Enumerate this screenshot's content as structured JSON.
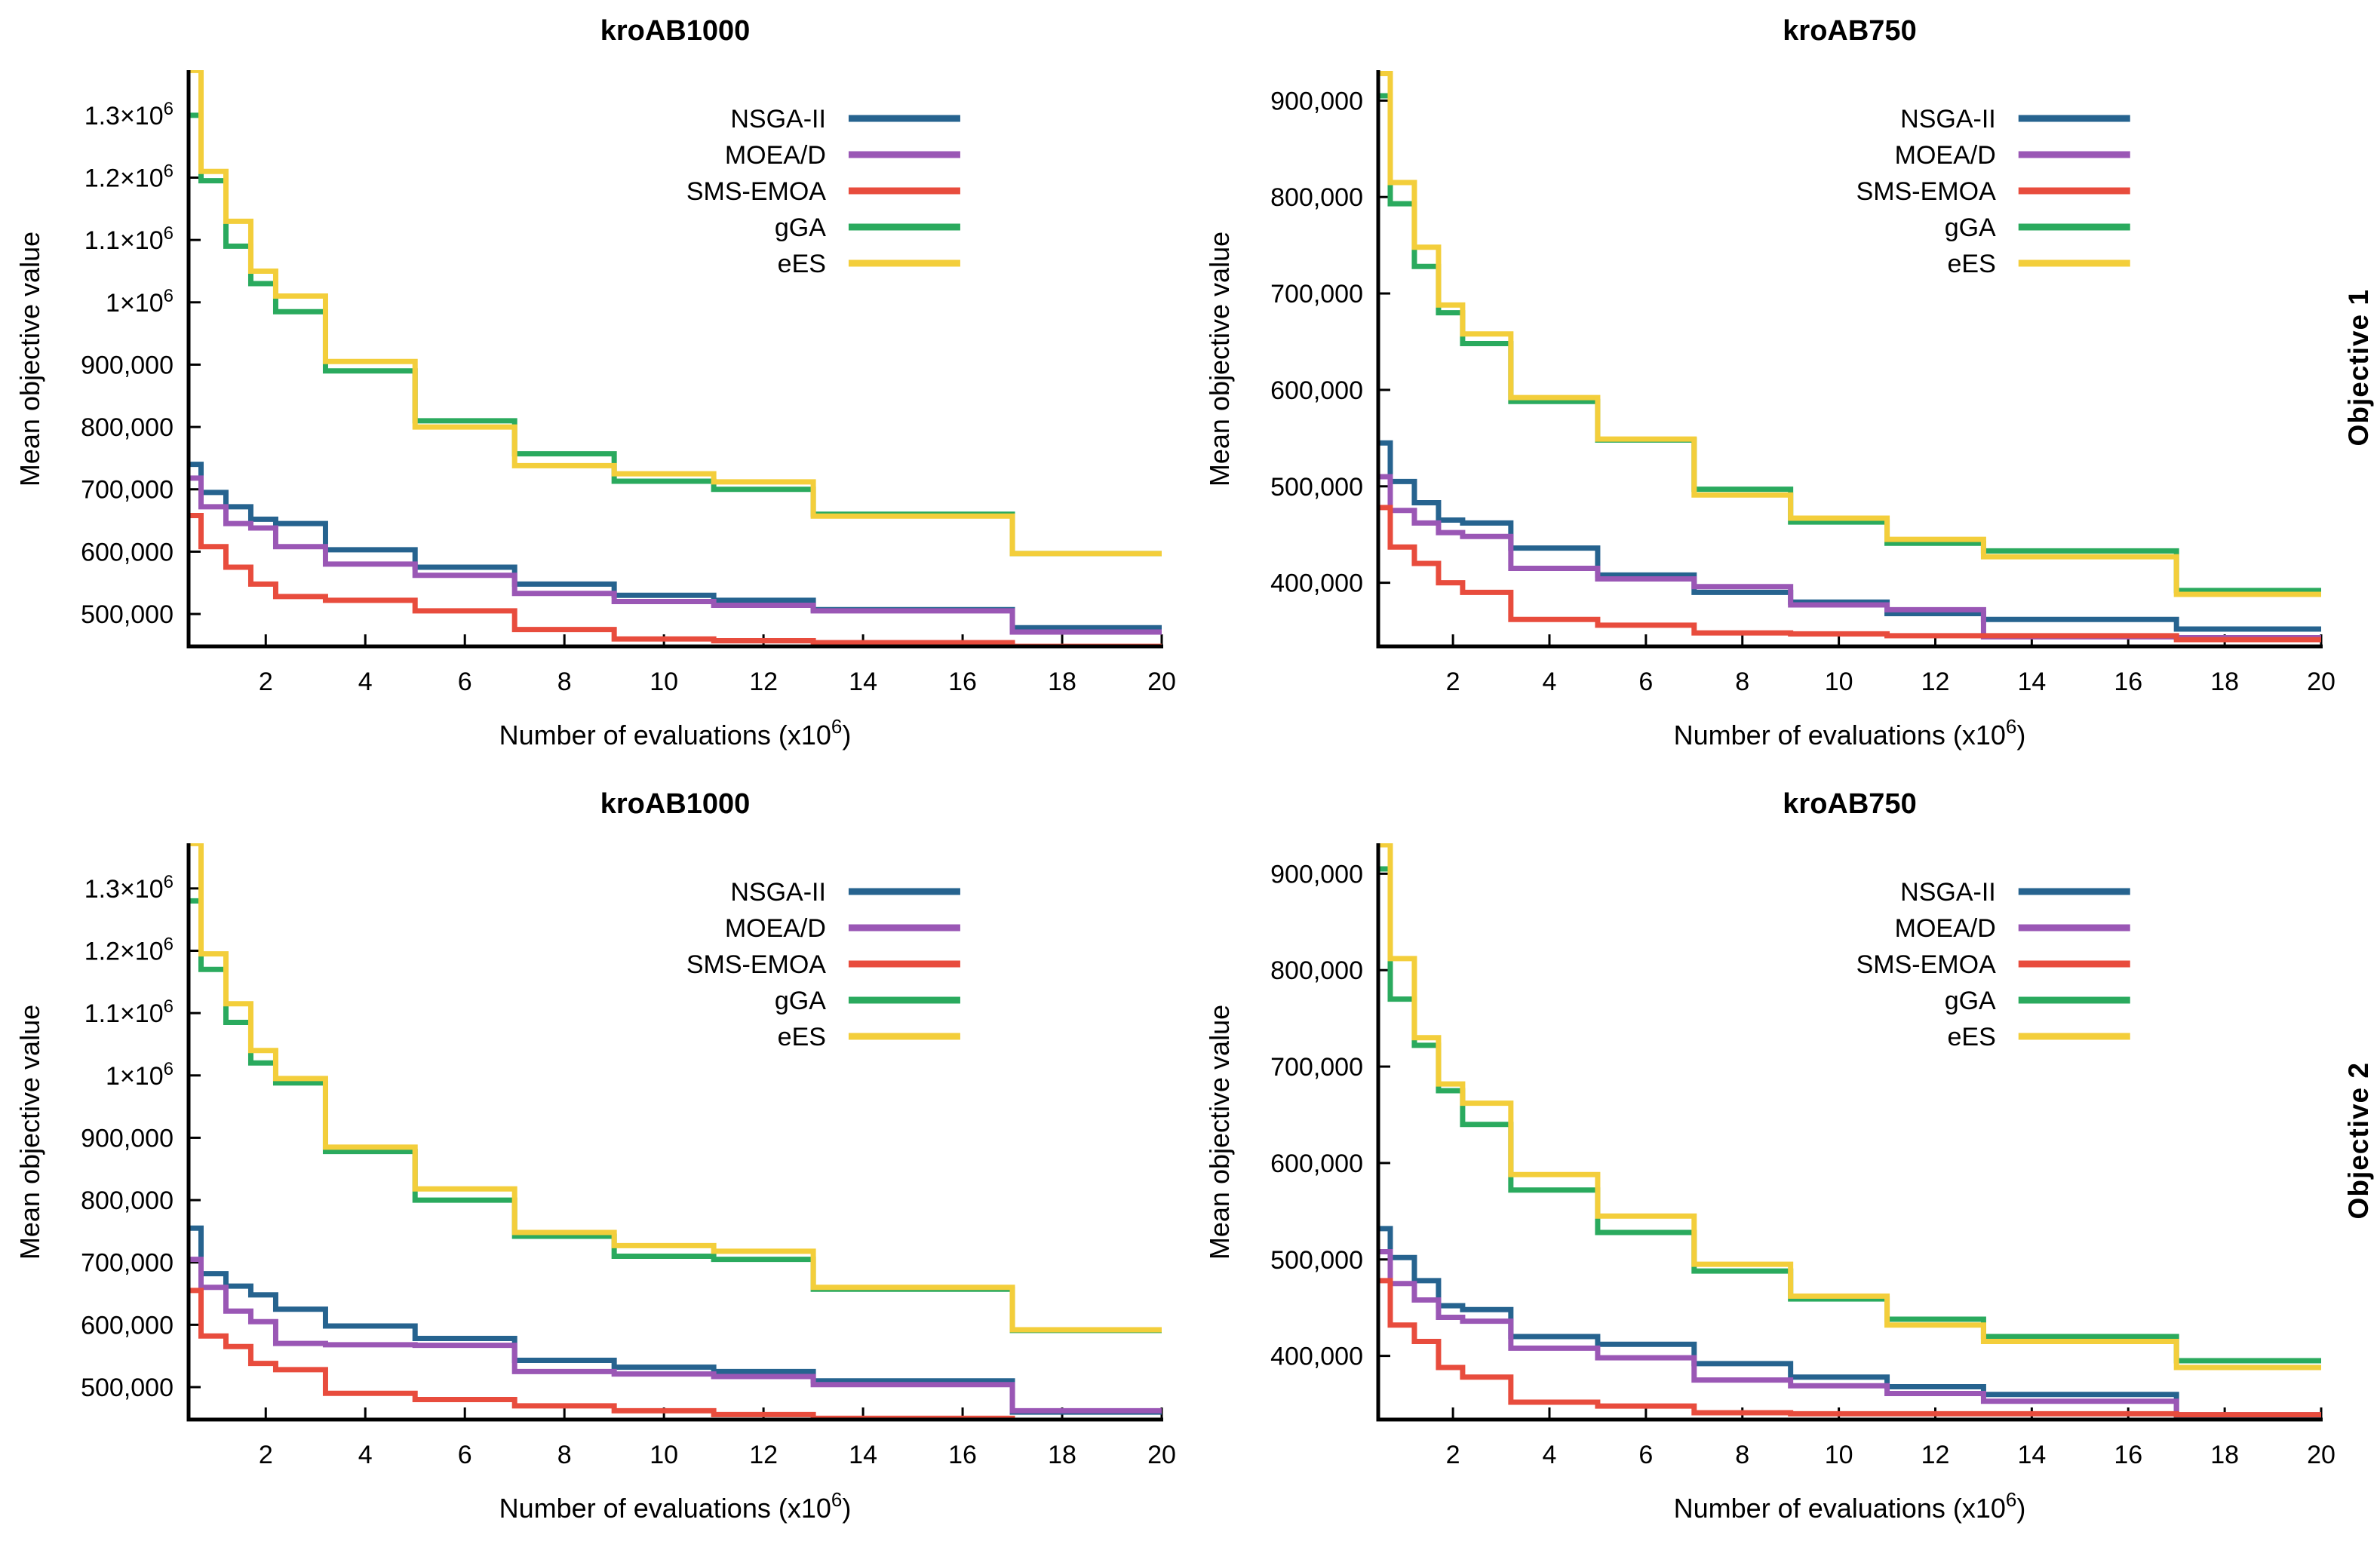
{
  "row_labels": [
    {
      "label": "Objective 1"
    },
    {
      "label": "Objective 2"
    }
  ],
  "legend_entries": [
    "NSGA-II",
    "MOEA/D",
    "SMS-EMOA",
    "gGA",
    "eES"
  ],
  "colors": {
    "nsga2": "#26638f",
    "moead": "#9a57b5",
    "smsemoa": "#e84c3d",
    "gga": "#2aaa5e",
    "ees": "#f3ce3b",
    "axis": "#000000"
  },
  "chart_data": [
    {
      "type": "line",
      "step": true,
      "title": "kroAB1000",
      "xlabel": "Number of evaluations (x10^6)",
      "ylabel": "Mean objective value",
      "legend_position": "upper-right-inside",
      "grid": false,
      "xlim": [
        0.45,
        20
      ],
      "ylim": [
        448000,
        1370000
      ],
      "xticks": [
        2,
        4,
        6,
        8,
        10,
        12,
        14,
        16,
        18,
        20
      ],
      "yticks": [
        {
          "v": 500000,
          "label": "500,000"
        },
        {
          "v": 600000,
          "label": "600,000"
        },
        {
          "v": 700000,
          "label": "700,000"
        },
        {
          "v": 800000,
          "label": "800,000"
        },
        {
          "v": 900000,
          "label": "900,000"
        },
        {
          "v": 1000000,
          "label": "1×10^6"
        },
        {
          "v": 1100000,
          "label": "1.1×10^6"
        },
        {
          "v": 1200000,
          "label": "1.2×10^6"
        },
        {
          "v": 1300000,
          "label": "1.3×10^6"
        }
      ],
      "x_breakpoints": [
        0.45,
        0.7,
        1.2,
        1.7,
        2.2,
        3.2,
        5,
        7,
        9,
        11,
        13,
        17,
        20
      ],
      "series": [
        {
          "name": "NSGA-II",
          "color": "#26638f",
          "values": [
            740000,
            695000,
            672000,
            652000,
            645000,
            603000,
            575000,
            548000,
            530000,
            522000,
            507000,
            478000
          ]
        },
        {
          "name": "MOEA/D",
          "color": "#9a57b5",
          "values": [
            718000,
            672000,
            645000,
            638000,
            608000,
            580000,
            562000,
            533000,
            520000,
            514000,
            505000,
            471000
          ]
        },
        {
          "name": "SMS-EMOA",
          "color": "#e84c3d",
          "values": [
            658000,
            608000,
            575000,
            548000,
            528000,
            522000,
            505000,
            475000,
            460000,
            457000,
            454000,
            448000
          ]
        },
        {
          "name": "gGA",
          "color": "#2aaa5e",
          "values": [
            1300000,
            1195000,
            1090000,
            1030000,
            985000,
            890000,
            810000,
            757000,
            713000,
            700000,
            660000,
            597000
          ]
        },
        {
          "name": "eES",
          "color": "#f3ce3b",
          "values": [
            1372000,
            1210000,
            1130000,
            1050000,
            1010000,
            905000,
            800000,
            738000,
            725000,
            712000,
            657000,
            597000
          ]
        }
      ]
    },
    {
      "type": "line",
      "step": true,
      "title": "kroAB750",
      "xlabel": "Number of evaluations (x10^6)",
      "ylabel": "Mean objective value",
      "legend_position": "upper-right-inside",
      "grid": false,
      "xlim": [
        0.45,
        20
      ],
      "ylim": [
        334000,
        930000
      ],
      "xticks": [
        2,
        4,
        6,
        8,
        10,
        12,
        14,
        16,
        18,
        20
      ],
      "yticks": [
        {
          "v": 400000,
          "label": "400,000"
        },
        {
          "v": 500000,
          "label": "500,000"
        },
        {
          "v": 600000,
          "label": "600,000"
        },
        {
          "v": 700000,
          "label": "700,000"
        },
        {
          "v": 800000,
          "label": "800,000"
        },
        {
          "v": 900000,
          "label": "900,000"
        }
      ],
      "x_breakpoints": [
        0.45,
        0.7,
        1.2,
        1.7,
        2.2,
        3.2,
        5,
        7,
        9,
        11,
        13,
        17,
        20
      ],
      "series": [
        {
          "name": "NSGA-II",
          "color": "#26638f",
          "values": [
            545000,
            505000,
            483000,
            465000,
            462000,
            436000,
            408000,
            390000,
            380000,
            368000,
            362000,
            352000
          ]
        },
        {
          "name": "MOEA/D",
          "color": "#9a57b5",
          "values": [
            510000,
            475000,
            462000,
            452000,
            448000,
            415000,
            404000,
            396000,
            377000,
            372000,
            344000,
            343000
          ]
        },
        {
          "name": "SMS-EMOA",
          "color": "#e84c3d",
          "values": [
            478000,
            437000,
            420000,
            400000,
            390000,
            362000,
            356000,
            348000,
            347000,
            345000,
            345000,
            341000
          ]
        },
        {
          "name": "gGA",
          "color": "#2aaa5e",
          "values": [
            905000,
            793000,
            728000,
            680000,
            648000,
            588000,
            548000,
            497000,
            463000,
            441000,
            433000,
            392000
          ]
        },
        {
          "name": "eES",
          "color": "#f3ce3b",
          "values": [
            928000,
            815000,
            748000,
            688000,
            658000,
            592000,
            549000,
            491000,
            467000,
            445000,
            427000,
            388000
          ]
        }
      ]
    },
    {
      "type": "line",
      "step": true,
      "title": "kroAB1000",
      "xlabel": "Number of evaluations (x10^6)",
      "ylabel": "Mean objective value",
      "legend_position": "upper-right-inside",
      "grid": false,
      "xlim": [
        0.45,
        20
      ],
      "ylim": [
        448000,
        1370000
      ],
      "xticks": [
        2,
        4,
        6,
        8,
        10,
        12,
        14,
        16,
        18,
        20
      ],
      "yticks": [
        {
          "v": 500000,
          "label": "500,000"
        },
        {
          "v": 600000,
          "label": "600,000"
        },
        {
          "v": 700000,
          "label": "700,000"
        },
        {
          "v": 800000,
          "label": "800,000"
        },
        {
          "v": 900000,
          "label": "900,000"
        },
        {
          "v": 1000000,
          "label": "1×10^6"
        },
        {
          "v": 1100000,
          "label": "1.1×10^6"
        },
        {
          "v": 1200000,
          "label": "1.2×10^6"
        },
        {
          "v": 1300000,
          "label": "1.3×10^6"
        }
      ],
      "x_breakpoints": [
        0.45,
        0.7,
        1.2,
        1.7,
        2.2,
        3.2,
        5,
        7,
        9,
        11,
        13,
        17,
        20
      ],
      "series": [
        {
          "name": "NSGA-II",
          "color": "#26638f",
          "values": [
            755000,
            682000,
            662000,
            648000,
            625000,
            598000,
            578000,
            543000,
            532000,
            525000,
            510000,
            460000
          ]
        },
        {
          "name": "MOEA/D",
          "color": "#9a57b5",
          "values": [
            705000,
            660000,
            622000,
            605000,
            570000,
            568000,
            567000,
            525000,
            521000,
            517000,
            504000,
            462000
          ]
        },
        {
          "name": "SMS-EMOA",
          "color": "#e84c3d",
          "values": [
            655000,
            582000,
            565000,
            538000,
            528000,
            490000,
            480000,
            470000,
            462000,
            456000,
            450000,
            446000
          ]
        },
        {
          "name": "gGA",
          "color": "#2aaa5e",
          "values": [
            1280000,
            1170000,
            1085000,
            1020000,
            988000,
            878000,
            800000,
            742000,
            710000,
            705000,
            657000,
            591000
          ]
        },
        {
          "name": "eES",
          "color": "#f3ce3b",
          "values": [
            1372000,
            1195000,
            1115000,
            1040000,
            995000,
            885000,
            818000,
            748000,
            727000,
            718000,
            660000,
            592000
          ]
        }
      ]
    },
    {
      "type": "line",
      "step": true,
      "title": "kroAB750",
      "xlabel": "Number of evaluations (x10^6)",
      "ylabel": "Mean objective value",
      "legend_position": "upper-right-inside",
      "grid": false,
      "xlim": [
        0.45,
        20
      ],
      "ylim": [
        334000,
        930000
      ],
      "xticks": [
        2,
        4,
        6,
        8,
        10,
        12,
        14,
        16,
        18,
        20
      ],
      "yticks": [
        {
          "v": 400000,
          "label": "400,000"
        },
        {
          "v": 500000,
          "label": "500,000"
        },
        {
          "v": 600000,
          "label": "600,000"
        },
        {
          "v": 700000,
          "label": "700,000"
        },
        {
          "v": 800000,
          "label": "800,000"
        },
        {
          "v": 900000,
          "label": "900,000"
        }
      ],
      "x_breakpoints": [
        0.45,
        0.7,
        1.2,
        1.7,
        2.2,
        3.2,
        5,
        7,
        9,
        11,
        13,
        17,
        20
      ],
      "series": [
        {
          "name": "NSGA-II",
          "color": "#26638f",
          "values": [
            532000,
            502000,
            478000,
            452000,
            448000,
            420000,
            412000,
            392000,
            378000,
            368000,
            360000,
            336000
          ]
        },
        {
          "name": "MOEA/D",
          "color": "#9a57b5",
          "values": [
            508000,
            475000,
            458000,
            440000,
            436000,
            408000,
            398000,
            375000,
            369000,
            361000,
            353000,
            339000
          ]
        },
        {
          "name": "SMS-EMOA",
          "color": "#e84c3d",
          "values": [
            478000,
            432000,
            415000,
            388000,
            378000,
            352000,
            348000,
            341000,
            340000,
            340000,
            340000,
            339000
          ]
        },
        {
          "name": "gGA",
          "color": "#2aaa5e",
          "values": [
            905000,
            770000,
            722000,
            675000,
            640000,
            572000,
            528000,
            488000,
            459000,
            438000,
            420000,
            395000
          ]
        },
        {
          "name": "eES",
          "color": "#f3ce3b",
          "values": [
            930000,
            812000,
            730000,
            682000,
            662000,
            588000,
            545000,
            495000,
            462000,
            432000,
            415000,
            388000
          ]
        }
      ]
    }
  ]
}
